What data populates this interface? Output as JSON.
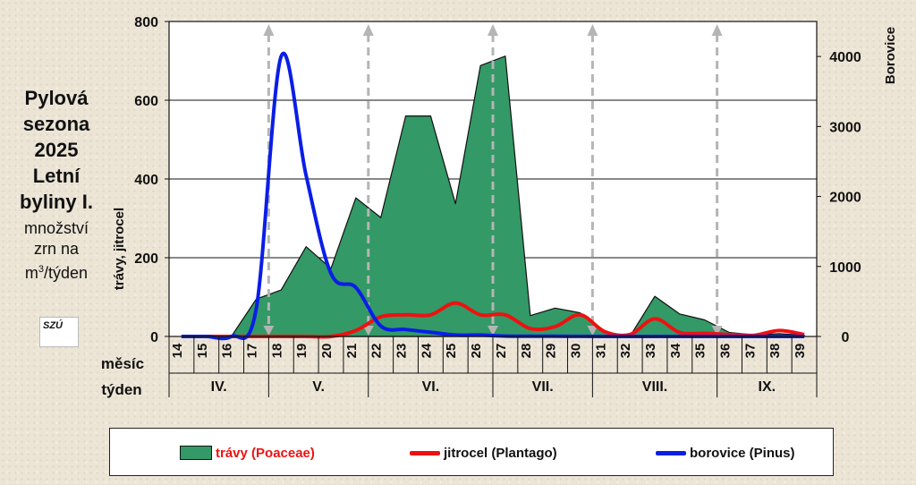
{
  "side": {
    "title_lines": [
      "Pylová",
      "sezona",
      "2025",
      "Letní",
      "byliny I."
    ],
    "subtitle_lines": [
      "množství",
      "zrn na",
      "m",
      "/týden"
    ],
    "unit_sup": "3",
    "logo_text": "SZÚ"
  },
  "colors": {
    "travy": "#339966",
    "jitrocel": "#ee1111",
    "borovice": "#0a1ee6",
    "travy_label": "#ee1111"
  },
  "chart_data": {
    "type": "area",
    "x": [
      14,
      15,
      16,
      17,
      18,
      19,
      20,
      21,
      22,
      23,
      24,
      25,
      26,
      27,
      28,
      29,
      30,
      31,
      32,
      33,
      34,
      35,
      36,
      37,
      38,
      39
    ],
    "x_row_labels": {
      "week": "týden",
      "month": "měsíc"
    },
    "months": [
      {
        "label": "IV.",
        "start_week": 14,
        "end_week": 17
      },
      {
        "label": "V.",
        "start_week": 18,
        "end_week": 21
      },
      {
        "label": "VI.",
        "start_week": 22,
        "end_week": 26
      },
      {
        "label": "VII.",
        "start_week": 27,
        "end_week": 30
      },
      {
        "label": "VIII.",
        "start_week": 31,
        "end_week": 35
      },
      {
        "label": "IX.",
        "start_week": 36,
        "end_week": 39
      }
    ],
    "y_left": {
      "label": "trávy, jitrocel",
      "range": [
        0,
        800
      ],
      "ticks": [
        0,
        200,
        400,
        600,
        800
      ]
    },
    "y_right": {
      "label": "Borovice",
      "range": [
        0,
        4500
      ],
      "ticks": [
        0,
        1000,
        2000,
        3000,
        4000
      ]
    },
    "grid": true,
    "legend_position": "bottom",
    "series": [
      {
        "name": "trávy (Poaceae)",
        "type": "area",
        "axis": "left",
        "values": [
          0,
          0,
          0,
          95,
          118,
          228,
          173,
          352,
          302,
          560,
          560,
          337,
          688,
          712,
          53,
          72,
          60,
          12,
          0,
          102,
          57,
          42,
          10,
          4,
          7,
          3
        ]
      },
      {
        "name": "jitrocel (Plantago)",
        "type": "line",
        "axis": "left",
        "values": [
          0,
          0,
          0,
          0,
          0,
          0,
          0,
          15,
          50,
          55,
          55,
          85,
          55,
          55,
          20,
          25,
          55,
          12,
          5,
          45,
          10,
          8,
          5,
          3,
          15,
          5
        ]
      },
      {
        "name": "borovice (Pinus)",
        "type": "line",
        "axis": "right",
        "values": [
          0,
          0,
          0,
          400,
          4000,
          2300,
          900,
          700,
          150,
          100,
          60,
          20,
          20,
          5,
          3,
          2,
          1,
          0,
          0,
          0,
          0,
          0,
          0,
          0,
          0,
          0
        ]
      }
    ],
    "arrow_weeks": [
      17.5,
      21.5,
      26.5,
      30.5,
      35.5
    ]
  }
}
